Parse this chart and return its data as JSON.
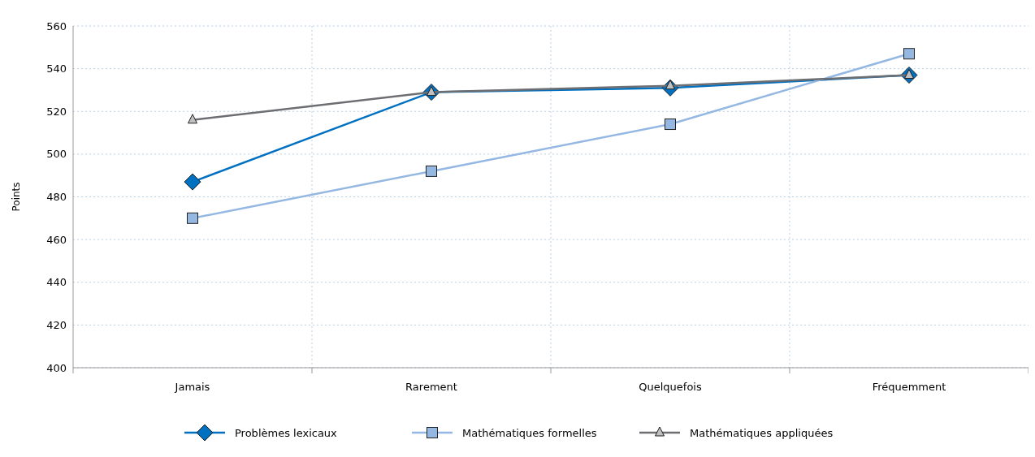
{
  "chart_data": {
    "type": "line",
    "ylabel": "Points",
    "categories": [
      "Jamais",
      "Rarement",
      "Quelquefois",
      "Fréquemment"
    ],
    "series": [
      {
        "name": "Problèmes lexicaux",
        "color": "#0070c0",
        "marker": "diamond",
        "values": [
          487,
          529,
          531,
          537
        ]
      },
      {
        "name": "Mathématiques formelles",
        "color": "#95b8e3",
        "marker": "square",
        "values": [
          470,
          492,
          514,
          547
        ]
      },
      {
        "name": "Mathématiques appliquées",
        "color": "#6d6e71",
        "marker": "triangle",
        "values": [
          516,
          529,
          532,
          537
        ]
      }
    ],
    "ylim": [
      400,
      560
    ],
    "yticks": [
      400,
      420,
      440,
      460,
      480,
      500,
      520,
      540,
      560
    ],
    "grid": true,
    "legend": "bottom"
  }
}
